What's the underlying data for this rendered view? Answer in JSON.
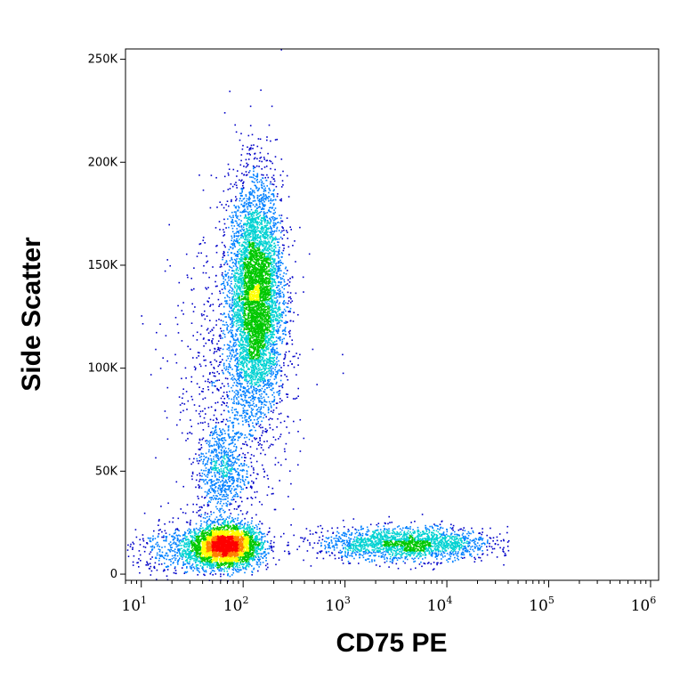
{
  "chart_data": {
    "type": "scatter",
    "subtype": "flow-cytometry-density-dot-plot",
    "xlabel": "CD75 PE",
    "ylabel": "Side Scatter",
    "x_scale": "log",
    "xlim": [
      7,
      1200000
    ],
    "x_ticks": [
      {
        "base": "10",
        "exp": "1"
      },
      {
        "base": "10",
        "exp": "2"
      },
      {
        "base": "10",
        "exp": "3"
      },
      {
        "base": "10",
        "exp": "4"
      },
      {
        "base": "10",
        "exp": "5"
      },
      {
        "base": "10",
        "exp": "6"
      }
    ],
    "y_scale": "linear",
    "ylim": [
      -3000,
      255000
    ],
    "y_ticks": [
      {
        "value": 0,
        "label": "0"
      },
      {
        "value": 50000,
        "label": "50K"
      },
      {
        "value": 100000,
        "label": "100K"
      },
      {
        "value": 150000,
        "label": "150K"
      },
      {
        "value": 200000,
        "label": "200K"
      },
      {
        "value": 250000,
        "label": "250K"
      }
    ],
    "grid": false,
    "color_scale": [
      "#0000c8",
      "#0080ff",
      "#00d2d2",
      "#00c800",
      "#ffff00",
      "#ff8000",
      "#ff0000"
    ],
    "populations": [
      {
        "x_log10_center": 2.12,
        "y_center": 135000,
        "x_log10_sd": 0.13,
        "y_sd": 28000,
        "events": 5200
      },
      {
        "x_log10_center": 1.83,
        "y_center": 14000,
        "x_log10_sd": 0.17,
        "y_sd": 5000,
        "events": 3200
      },
      {
        "x_log10_center": 1.78,
        "y_center": 50000,
        "x_log10_sd": 0.12,
        "y_sd": 12000,
        "events": 700
      },
      {
        "x_log10_center": 3.6,
        "y_center": 15000,
        "x_log10_sd": 0.42,
        "y_sd": 4000,
        "events": 2000
      },
      {
        "x_log10_center": 1.9,
        "y_center": 95000,
        "x_log10_sd": 0.3,
        "y_sd": 35000,
        "events": 900
      },
      {
        "x_log10_center": 1.5,
        "y_center": 12000,
        "x_log10_sd": 0.3,
        "y_sd": 6000,
        "events": 700
      }
    ]
  }
}
